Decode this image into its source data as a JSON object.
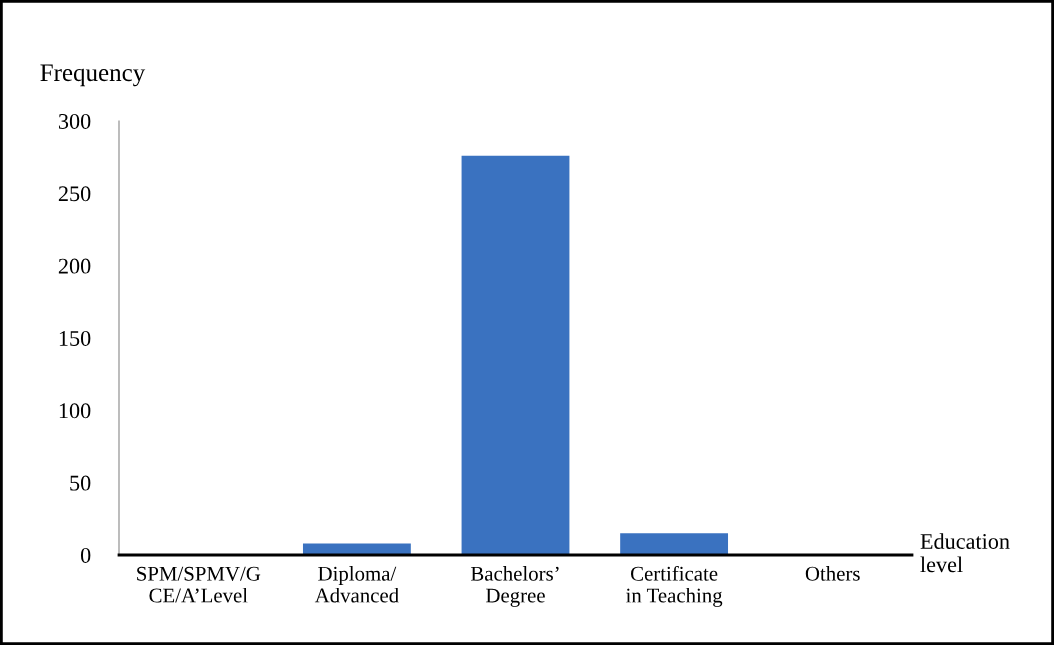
{
  "chart_data": {
    "type": "bar",
    "ylabel": "Frequency",
    "xlabel": "Education level",
    "categories": [
      "SPM/SPMV/G\nCE/A’Level",
      "Diploma/\nAdvanced",
      "Bachelors’\nDegree",
      "Certificate\nin Teaching",
      "Others"
    ],
    "values": [
      0,
      8,
      276,
      15,
      0
    ],
    "color": "#3a72c0",
    "ylim": [
      0,
      300
    ],
    "yticks": [
      0,
      50,
      100,
      150,
      200,
      250,
      300
    ],
    "grid": false,
    "legend": false
  }
}
